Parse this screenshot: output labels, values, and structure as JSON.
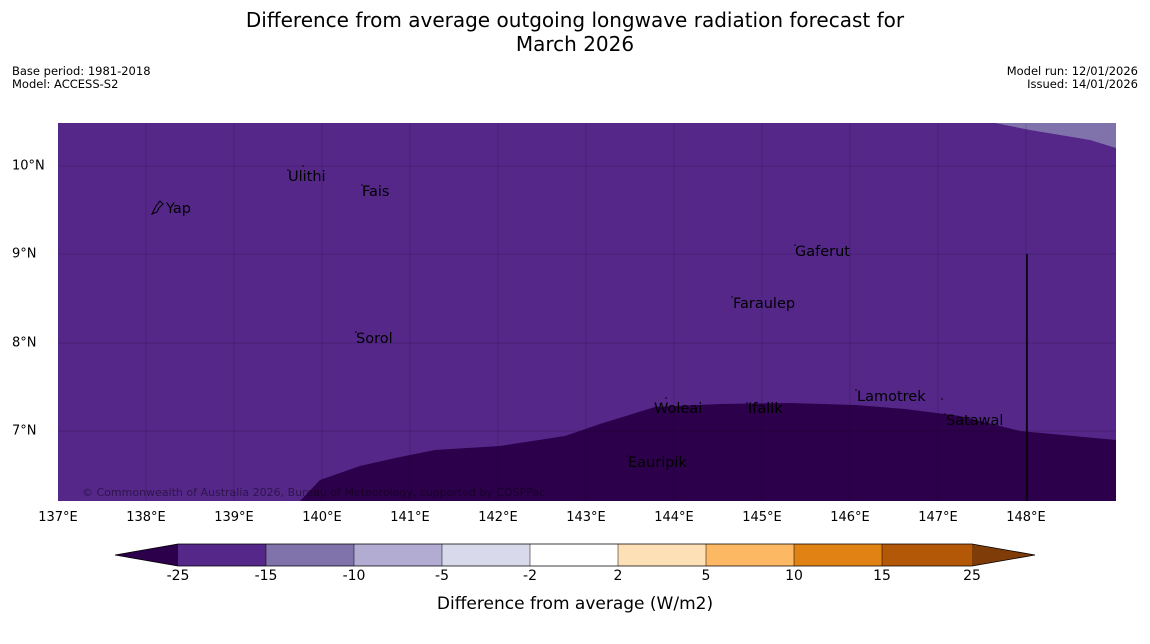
{
  "title": {
    "line1": "Difference from average outgoing longwave radiation forecast for",
    "line2": "March 2026"
  },
  "meta": {
    "base_period": "Base period: 1981-2018",
    "model": "Model: ACCESS-S2",
    "model_run": "Model run: 12/01/2026",
    "issued": "Issued: 14/01/2026"
  },
  "map": {
    "lon_ticks": [
      "137°E",
      "138°E",
      "139°E",
      "140°E",
      "141°E",
      "142°E",
      "143°E",
      "144°E",
      "145°E",
      "146°E",
      "147°E",
      "148°E"
    ],
    "lat_ticks": [
      "10°N",
      "9°N",
      "8°N",
      "7°N"
    ],
    "places": [
      "Yap",
      "Ulithi",
      "Fais",
      "Gaferut",
      "Faraulep",
      "Sorol",
      "Lamotrek",
      "Woleai",
      "Ifalik",
      "Satawal",
      "Eauripik"
    ],
    "copyright": "© Commonwealth of Australia 2026, Bureau of Meteorology, supported by COSPPac"
  },
  "colorbar": {
    "ticks": [
      "-25",
      "-15",
      "-10",
      "-5",
      "-2",
      "2",
      "5",
      "10",
      "15",
      "25"
    ],
    "label": "Difference from average (W/m2)",
    "colors": {
      "under": "#2d004b",
      "c1": "#542788",
      "c2": "#8073ac",
      "c3": "#b2abd2",
      "c4": "#d8daeb",
      "c5": "#ffffff",
      "c6": "#fee0b6",
      "c7": "#fdb863",
      "c8": "#e08214",
      "c9": "#b35806",
      "over": "#7f3b08"
    }
  }
}
